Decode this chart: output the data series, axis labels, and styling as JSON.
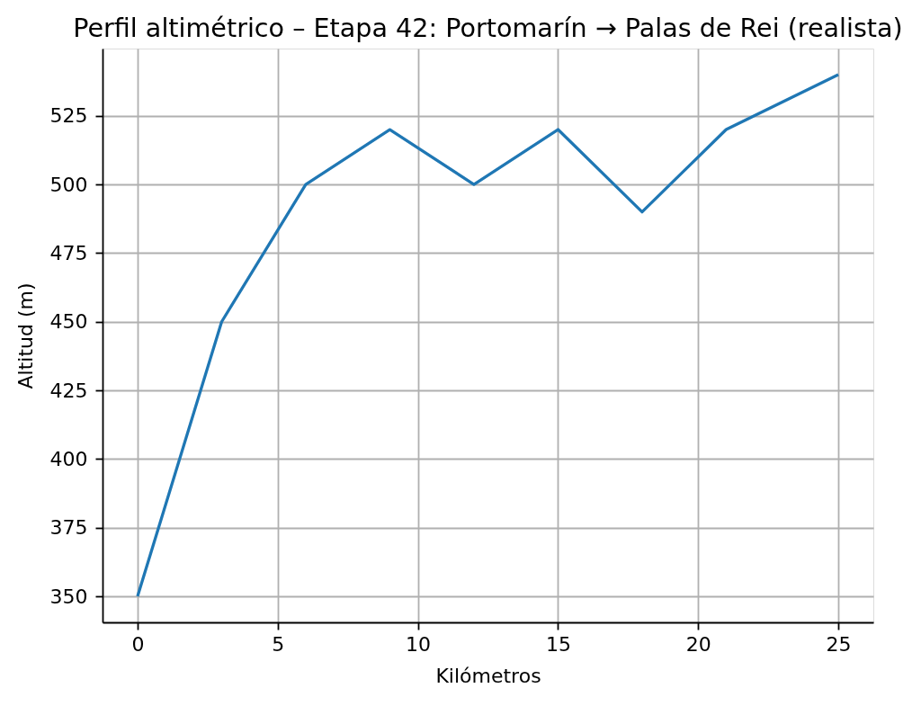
{
  "chart_data": {
    "type": "line",
    "title": "Perfil altimétrico – Etapa 42: Portomarín → Palas de Rei (realista)",
    "xlabel": "Kilómetros",
    "ylabel": "Altitud (m)",
    "x": [
      0,
      3,
      6,
      9,
      12,
      15,
      18,
      21,
      25
    ],
    "series": [
      {
        "color": "#1f77b4",
        "values": [
          350,
          450,
          500,
          520,
          500,
          520,
          490,
          520,
          540
        ]
      }
    ],
    "xlim": [
      -1.25,
      26.25
    ],
    "ylim": [
      340.5,
      549.5
    ],
    "xticks": [
      0,
      5,
      10,
      15,
      20,
      25
    ],
    "yticks": [
      350,
      375,
      400,
      425,
      450,
      475,
      500,
      525
    ],
    "grid": true
  }
}
